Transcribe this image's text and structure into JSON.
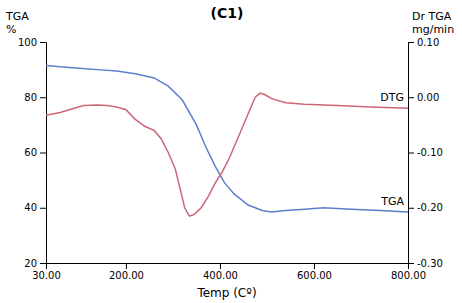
{
  "chart_data": {
    "type": "line",
    "title": "(C1)",
    "xlabel": "Temp (Cº)",
    "ylabel": [
      "TGA",
      "%"
    ],
    "y2label": [
      "Dr TGA",
      "mg/min"
    ],
    "xlim": [
      30,
      800
    ],
    "xticks": [
      {
        "value": 30,
        "label": "30.00"
      },
      {
        "value": 200,
        "label": "200.00"
      },
      {
        "value": 400,
        "label": "400.00"
      },
      {
        "value": 600,
        "label": "600.00"
      },
      {
        "value": 800,
        "label": "800.00"
      }
    ],
    "ylim": [
      20,
      100
    ],
    "yticks": [
      20,
      40,
      60,
      80,
      100
    ],
    "y2lim": [
      -0.3,
      0.1
    ],
    "y2ticks": [
      {
        "value": -0.3,
        "label": "-0.30"
      },
      {
        "value": -0.2,
        "label": "-0.20"
      },
      {
        "value": -0.1,
        "label": "-0.10"
      },
      {
        "value": 0.0,
        "label": "0.00"
      },
      {
        "value": 0.1,
        "label": "0.10"
      }
    ],
    "grid": false,
    "series": [
      {
        "name": "TGA",
        "color": "#5B7FCC",
        "x": [
          30,
          60,
          100,
          140,
          180,
          220,
          260,
          290,
          320,
          350,
          370,
          390,
          410,
          430,
          460,
          490,
          510,
          540,
          580,
          620,
          680,
          740,
          800
        ],
        "values": [
          91.5,
          91,
          90.5,
          90,
          89.5,
          88.5,
          87,
          84,
          79,
          70,
          62,
          55,
          49,
          45,
          41,
          39,
          38.5,
          39,
          39.5,
          40,
          39.5,
          39,
          38.5
        ]
      },
      {
        "name": "DTG",
        "color": "#CC6677",
        "x": [
          30,
          60,
          90,
          110,
          140,
          160,
          180,
          200,
          220,
          240,
          260,
          275,
          290,
          305,
          315,
          325,
          335,
          345,
          360,
          375,
          390,
          405,
          420,
          440,
          460,
          475,
          485,
          495,
          510,
          540,
          580,
          650,
          720,
          800
        ],
        "values": [
          73.5,
          74.5,
          76,
          77,
          77.2,
          77,
          76.5,
          75.5,
          72,
          69.5,
          68,
          65,
          60,
          54,
          47,
          40,
          37,
          37.5,
          40,
          44,
          49,
          53,
          58,
          66,
          74,
          80,
          81.5,
          81,
          79.5,
          78,
          77.5,
          77,
          76.5,
          76
        ]
      }
    ]
  }
}
